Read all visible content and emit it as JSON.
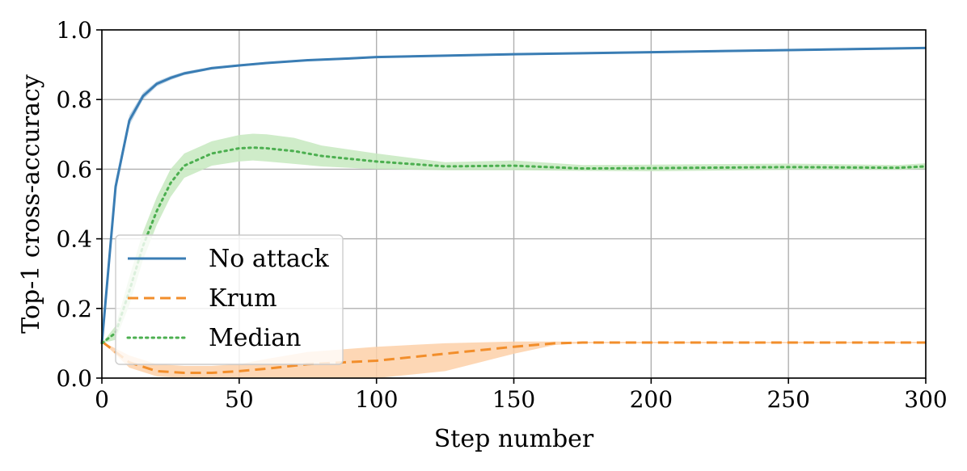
{
  "chart_data": {
    "type": "line",
    "xlabel": "Step number",
    "ylabel": "Top-1 cross-accuracy",
    "xlim": [
      0,
      300
    ],
    "ylim": [
      0,
      1.0
    ],
    "xticks": [
      0,
      50,
      100,
      150,
      200,
      250,
      300
    ],
    "yticks": [
      "0.0",
      "0.2",
      "0.4",
      "0.6",
      "0.8",
      "1.0"
    ],
    "grid": true,
    "legend_position": "lower-left",
    "series": [
      {
        "name": "No attack",
        "color": "#3a7db4",
        "style": "solid",
        "x": [
          0,
          5,
          10,
          15,
          20,
          25,
          30,
          40,
          50,
          60,
          75,
          90,
          100,
          125,
          150,
          175,
          200,
          250,
          290,
          300
        ],
        "y": [
          0.1,
          0.55,
          0.74,
          0.81,
          0.845,
          0.862,
          0.875,
          0.89,
          0.898,
          0.905,
          0.913,
          0.918,
          0.922,
          0.926,
          0.93,
          0.933,
          0.936,
          0.942,
          0.947,
          0.948
        ],
        "lower": [
          0.1,
          0.53,
          0.725,
          0.8,
          0.838,
          0.856,
          0.87,
          0.886,
          0.895,
          0.902,
          0.91,
          0.915,
          0.919,
          0.923,
          0.927,
          0.93,
          0.933,
          0.939,
          0.944,
          0.945
        ],
        "upper": [
          0.1,
          0.57,
          0.755,
          0.82,
          0.852,
          0.868,
          0.88,
          0.894,
          0.901,
          0.908,
          0.916,
          0.921,
          0.925,
          0.929,
          0.933,
          0.936,
          0.939,
          0.945,
          0.95,
          0.951
        ]
      },
      {
        "name": "Krum",
        "color": "#f28e2b",
        "band_color": "#fdd0a8",
        "style": "dashed",
        "x": [
          0,
          10,
          20,
          30,
          40,
          50,
          60,
          75,
          100,
          125,
          150,
          165,
          175,
          200,
          250,
          300
        ],
        "y": [
          0.105,
          0.045,
          0.02,
          0.015,
          0.015,
          0.02,
          0.027,
          0.04,
          0.05,
          0.07,
          0.09,
          0.1,
          0.102,
          0.102,
          0.102,
          0.102
        ],
        "lower": [
          0.105,
          0.03,
          0.005,
          0.0,
          0.0,
          0.0,
          0.0,
          0.0,
          0.0,
          0.02,
          0.07,
          0.095,
          0.1,
          0.1,
          0.1,
          0.1
        ],
        "upper": [
          0.105,
          0.065,
          0.04,
          0.035,
          0.035,
          0.04,
          0.055,
          0.075,
          0.09,
          0.1,
          0.105,
          0.105,
          0.104,
          0.104,
          0.104,
          0.104
        ]
      },
      {
        "name": "Median",
        "color": "#4caf50",
        "band_color": "#c7e9c0",
        "style": "dotted",
        "x": [
          0,
          5,
          10,
          15,
          20,
          25,
          30,
          40,
          50,
          55,
          60,
          70,
          80,
          100,
          125,
          150,
          175,
          200,
          250,
          290,
          300
        ],
        "y": [
          0.1,
          0.13,
          0.25,
          0.38,
          0.48,
          0.56,
          0.61,
          0.645,
          0.66,
          0.662,
          0.66,
          0.652,
          0.638,
          0.622,
          0.608,
          0.61,
          0.602,
          0.603,
          0.606,
          0.604,
          0.608
        ],
        "lower": [
          0.1,
          0.11,
          0.21,
          0.34,
          0.44,
          0.52,
          0.575,
          0.61,
          0.622,
          0.625,
          0.622,
          0.615,
          0.608,
          0.6,
          0.597,
          0.597,
          0.595,
          0.594,
          0.598,
          0.598,
          0.6
        ],
        "upper": [
          0.1,
          0.15,
          0.29,
          0.42,
          0.52,
          0.6,
          0.645,
          0.68,
          0.698,
          0.702,
          0.7,
          0.69,
          0.668,
          0.645,
          0.62,
          0.625,
          0.612,
          0.613,
          0.616,
          0.612,
          0.617
        ]
      }
    ]
  }
}
